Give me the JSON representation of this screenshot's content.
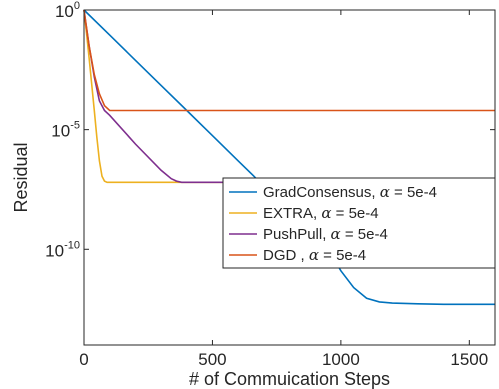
{
  "chart_data": {
    "type": "line",
    "xlabel": "# of Commuication Steps",
    "ylabel": "Residual",
    "xlim": [
      0,
      1600
    ],
    "ylim_log10": [
      -14,
      0
    ],
    "y_scale": "log",
    "grid": false,
    "legend_position": "lower-right",
    "x_ticks": [
      "0",
      "500",
      "1000",
      "1500"
    ],
    "y_ticks": [
      {
        "base": "10",
        "exp": "0",
        "log10": 0
      },
      {
        "base": "10",
        "exp": "-5",
        "log10": -5
      },
      {
        "base": "10",
        "exp": "-10",
        "log10": -10
      }
    ],
    "series": [
      {
        "label_prefix": "GradConsensus, ",
        "label_greek": "α",
        "label_suffix": " = 5e-4",
        "color": "#0072BD",
        "x": [
          0,
          100,
          200,
          300,
          400,
          500,
          600,
          700,
          800,
          900,
          950,
          1000,
          1050,
          1100,
          1150,
          1200,
          1300,
          1400,
          1500,
          1600
        ],
        "y_log10": [
          0,
          -1.05,
          -2.1,
          -3.15,
          -4.2,
          -5.25,
          -6.3,
          -7.35,
          -8.4,
          -9.45,
          -10.0,
          -10.9,
          -11.6,
          -12.05,
          -12.2,
          -12.25,
          -12.28,
          -12.3,
          -12.3,
          -12.3
        ]
      },
      {
        "label_prefix": "EXTRA, ",
        "label_greek": "α",
        "label_suffix": " = 5e-4",
        "color": "#EDB120",
        "x": [
          0,
          10,
          20,
          30,
          40,
          50,
          60,
          70,
          80,
          90,
          100,
          200,
          400,
          800,
          1200,
          1600
        ],
        "y_log10": [
          0,
          -1.0,
          -2.0,
          -3.1,
          -4.2,
          -5.3,
          -6.3,
          -6.95,
          -7.15,
          -7.2,
          -7.2,
          -7.2,
          -7.2,
          -7.2,
          -7.2,
          -7.2
        ]
      },
      {
        "label_prefix": "PushPull, ",
        "label_greek": "α",
        "label_suffix": " = 5e-4",
        "color": "#7E2F8E",
        "x": [
          0,
          20,
          40,
          60,
          80,
          100,
          200,
          300,
          340,
          360,
          380,
          400,
          600,
          1000,
          1600
        ],
        "y_log10": [
          0,
          -1.5,
          -2.8,
          -3.8,
          -4.2,
          -4.4,
          -5.6,
          -6.7,
          -7.05,
          -7.15,
          -7.2,
          -7.2,
          -7.2,
          -7.2,
          -7.2
        ]
      },
      {
        "label_prefix": "DGD , ",
        "label_greek": "α",
        "label_suffix": " = 5e-4",
        "color": "#D95319",
        "x": [
          0,
          20,
          40,
          60,
          80,
          100,
          400,
          800,
          1200,
          1600
        ],
        "y_log10": [
          0,
          -1.5,
          -2.7,
          -3.5,
          -4.0,
          -4.2,
          -4.2,
          -4.2,
          -4.2,
          -4.2
        ]
      }
    ]
  }
}
